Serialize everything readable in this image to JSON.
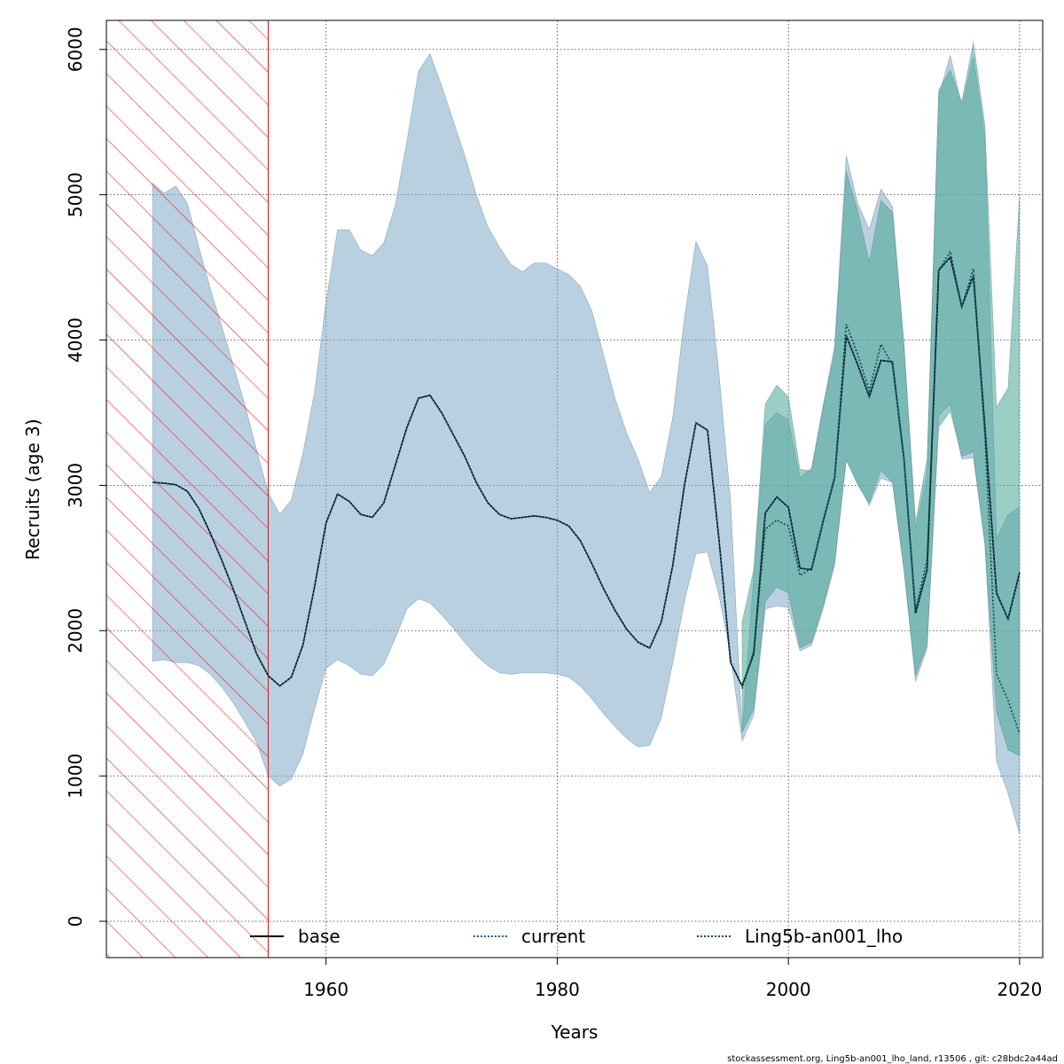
{
  "chart_data": {
    "type": "area",
    "xlabel": "Years",
    "ylabel": "Recruits (age 3)",
    "xlim": [
      1941,
      2022
    ],
    "ylim": [
      -250,
      6200
    ],
    "xticks": [
      1960,
      1980,
      2000,
      2020
    ],
    "yticks": [
      0,
      1000,
      2000,
      3000,
      4000,
      5000,
      6000
    ],
    "grid": true,
    "legend_position": "bottom",
    "hatched_region": {
      "x_start": 1941,
      "x_end": 1955,
      "color": "#ff0000"
    },
    "series": [
      {
        "name": "base",
        "line_style": "solid",
        "line_color": "#000000",
        "fill_color": "#7fa9c6",
        "x": [
          1945,
          1946,
          1947,
          1948,
          1949,
          1950,
          1951,
          1952,
          1953,
          1954,
          1955,
          1956,
          1957,
          1958,
          1959,
          1960,
          1961,
          1962,
          1963,
          1964,
          1965,
          1966,
          1967,
          1968,
          1969,
          1970,
          1971,
          1972,
          1973,
          1974,
          1975,
          1976,
          1977,
          1978,
          1979,
          1980,
          1981,
          1982,
          1983,
          1984,
          1985,
          1986,
          1987,
          1988,
          1989,
          1990,
          1991,
          1992,
          1993,
          1994,
          1995,
          1996,
          1997,
          1998,
          1999,
          2000,
          2001,
          2002,
          2003,
          2004,
          2005,
          2006,
          2007,
          2008,
          2009,
          2010,
          2011,
          2012,
          2013,
          2014,
          2015,
          2016,
          2017,
          2018,
          2019,
          2020
        ],
        "y": [
          3020,
          3015,
          3005,
          2960,
          2840,
          2670,
          2480,
          2280,
          2060,
          1840,
          1690,
          1620,
          1680,
          1900,
          2300,
          2740,
          2940,
          2890,
          2800,
          2780,
          2880,
          3140,
          3400,
          3600,
          3620,
          3500,
          3350,
          3200,
          3020,
          2880,
          2800,
          2770,
          2780,
          2790,
          2780,
          2760,
          2720,
          2620,
          2460,
          2290,
          2140,
          2010,
          1920,
          1880,
          2060,
          2450,
          3000,
          3430,
          3380,
          2620,
          1780,
          1620,
          1840,
          2810,
          2920,
          2850,
          2430,
          2420,
          2750,
          3050,
          4030,
          3830,
          3610,
          3860,
          3850,
          3180,
          2120,
          2420,
          4480,
          4570,
          4230,
          4440,
          3400,
          2260,
          2080,
          2400
        ],
        "lower": [
          1790,
          1800,
          1780,
          1780,
          1760,
          1700,
          1610,
          1500,
          1370,
          1230,
          1000,
          930,
          980,
          1150,
          1460,
          1740,
          1800,
          1760,
          1700,
          1690,
          1770,
          1950,
          2150,
          2220,
          2190,
          2110,
          2020,
          1920,
          1830,
          1760,
          1710,
          1700,
          1710,
          1710,
          1710,
          1700,
          1680,
          1620,
          1530,
          1430,
          1340,
          1260,
          1200,
          1210,
          1400,
          1780,
          2200,
          2530,
          2540,
          2240,
          1830,
          1240,
          1420,
          2150,
          2170,
          2160,
          1860,
          1900,
          2150,
          2450,
          3170,
          3020,
          2860,
          3050,
          3020,
          2410,
          1650,
          1880,
          3480,
          3560,
          3180,
          3190,
          2600,
          1100,
          880,
          600
        ],
        "upper": [
          5080,
          5010,
          5060,
          4940,
          4640,
          4350,
          4090,
          3820,
          3550,
          3240,
          2950,
          2800,
          2900,
          3220,
          3640,
          4260,
          4760,
          4760,
          4620,
          4580,
          4670,
          4930,
          5370,
          5850,
          5970,
          5750,
          5510,
          5270,
          5000,
          4780,
          4640,
          4520,
          4470,
          4530,
          4530,
          4490,
          4450,
          4370,
          4200,
          3900,
          3600,
          3360,
          3180,
          2950,
          3060,
          3470,
          4150,
          4680,
          4510,
          3760,
          2890,
          1300,
          2380,
          3420,
          3500,
          3450,
          3050,
          3120,
          3550,
          3960,
          5270,
          4940,
          4760,
          5040,
          4920,
          3970,
          2700,
          3080,
          5680,
          5960,
          5610,
          5950,
          5400,
          2630,
          2800,
          2850
        ]
      },
      {
        "name": "current",
        "line_style": "dotted",
        "line_color": "#1f5f8f",
        "fill_color": "#7fa9c6",
        "x": [
          1945,
          1946,
          1947,
          1948,
          1949,
          1950,
          1951,
          1952,
          1953,
          1954,
          1955,
          1956,
          1957,
          1958,
          1959,
          1960,
          1961,
          1962,
          1963,
          1964,
          1965,
          1966,
          1967,
          1968,
          1969,
          1970,
          1971,
          1972,
          1973,
          1974,
          1975,
          1976,
          1977,
          1978,
          1979,
          1980,
          1981,
          1982,
          1983,
          1984,
          1985,
          1986,
          1987,
          1988,
          1989,
          1990,
          1991,
          1992,
          1993,
          1994,
          1995,
          1996,
          1997,
          1998,
          1999,
          2000,
          2001,
          2002,
          2003,
          2004,
          2005,
          2006,
          2007,
          2008,
          2009,
          2010,
          2011,
          2012,
          2013,
          2014,
          2015,
          2016,
          2017,
          2018,
          2019,
          2020
        ],
        "y": [
          3020,
          3015,
          3005,
          2960,
          2840,
          2670,
          2480,
          2280,
          2060,
          1840,
          1690,
          1620,
          1680,
          1900,
          2300,
          2740,
          2940,
          2890,
          2800,
          2780,
          2880,
          3140,
          3400,
          3600,
          3620,
          3500,
          3350,
          3200,
          3020,
          2880,
          2800,
          2770,
          2780,
          2790,
          2780,
          2760,
          2720,
          2620,
          2460,
          2290,
          2140,
          2010,
          1920,
          1880,
          2060,
          2450,
          3000,
          3430,
          3380,
          2620,
          1780,
          1620,
          1840,
          2810,
          2920,
          2850,
          2430,
          2420,
          2750,
          3050,
          4030,
          3830,
          3610,
          3860,
          3850,
          3180,
          2120,
          2420,
          4480,
          4570,
          4230,
          4440,
          3400,
          2260,
          2080,
          2400
        ],
        "lower": [
          1790,
          1800,
          1780,
          1780,
          1760,
          1700,
          1610,
          1500,
          1370,
          1230,
          1000,
          930,
          980,
          1150,
          1460,
          1740,
          1800,
          1760,
          1700,
          1690,
          1770,
          1950,
          2150,
          2220,
          2190,
          2110,
          2020,
          1920,
          1830,
          1760,
          1710,
          1700,
          1710,
          1710,
          1710,
          1700,
          1680,
          1620,
          1530,
          1430,
          1340,
          1260,
          1200,
          1210,
          1400,
          1780,
          2200,
          2530,
          2540,
          2240,
          1830,
          1240,
          1420,
          2150,
          2170,
          2160,
          1860,
          1900,
          2150,
          2450,
          3170,
          3020,
          2860,
          3050,
          3020,
          2410,
          1650,
          1880,
          3480,
          3560,
          3180,
          3190,
          2600,
          1100,
          880,
          600
        ],
        "upper": [
          5080,
          5010,
          5060,
          4940,
          4640,
          4350,
          4090,
          3820,
          3550,
          3240,
          2950,
          2800,
          2900,
          3220,
          3640,
          4260,
          4760,
          4760,
          4620,
          4580,
          4670,
          4930,
          5370,
          5850,
          5970,
          5750,
          5510,
          5270,
          5000,
          4780,
          4640,
          4520,
          4470,
          4530,
          4530,
          4490,
          4450,
          4370,
          4200,
          3900,
          3600,
          3360,
          3180,
          2950,
          3060,
          3470,
          4150,
          4680,
          4510,
          3760,
          2890,
          1300,
          2380,
          3420,
          3500,
          3450,
          3050,
          3120,
          3550,
          3960,
          5270,
          4940,
          4760,
          5040,
          4920,
          3970,
          2700,
          3080,
          5680,
          5960,
          5610,
          5950,
          5400,
          2630,
          2800,
          2850
        ]
      },
      {
        "name": "Ling5b-an001_lho",
        "line_style": "dotted",
        "line_color": "#0a4d3f",
        "fill_color": "#49a693",
        "x": [
          1996,
          1997,
          1998,
          1999,
          2000,
          2001,
          2002,
          2003,
          2004,
          2005,
          2006,
          2007,
          2008,
          2009,
          2010,
          2011,
          2012,
          2013,
          2014,
          2015,
          2016,
          2017,
          2018,
          2019,
          2020
        ],
        "y": [
          1600,
          1860,
          2700,
          2760,
          2720,
          2380,
          2430,
          2760,
          3060,
          4110,
          3900,
          3650,
          3970,
          3830,
          3170,
          2140,
          2490,
          4480,
          4610,
          4230,
          4490,
          3340,
          1700,
          1520,
          1290
        ],
        "lower": [
          1300,
          1460,
          2200,
          2300,
          2260,
          1880,
          1920,
          2170,
          2470,
          3180,
          3000,
          2880,
          3100,
          3020,
          2420,
          1690,
          1900,
          3400,
          3510,
          3200,
          3230,
          2590,
          1440,
          1180,
          1140
        ],
        "upper": [
          2060,
          2420,
          3560,
          3690,
          3610,
          3110,
          3100,
          3530,
          3920,
          5160,
          4890,
          4540,
          4960,
          4880,
          3950,
          2750,
          3180,
          5720,
          5860,
          5640,
          6050,
          5480,
          3540,
          3670,
          5000
        ]
      }
    ]
  },
  "footer": {
    "text": "stockassessment.org, Ling5b-an001_lho_land, r13506 , git: c28bdc2a44ad"
  }
}
